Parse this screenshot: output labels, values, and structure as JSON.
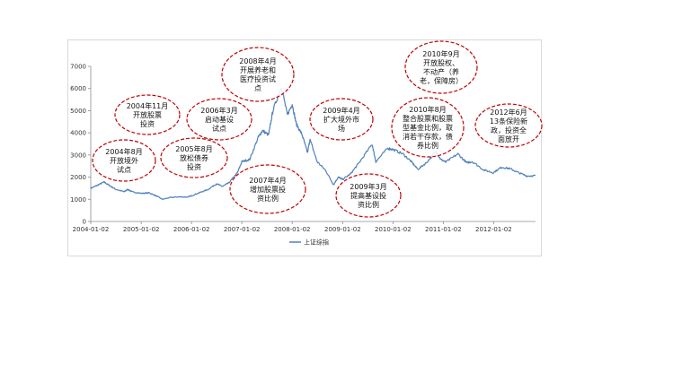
{
  "chart_data": {
    "type": "line",
    "title": "",
    "xlabel": "",
    "ylabel": "",
    "ylim": [
      0,
      7000
    ],
    "y_ticks": [
      0,
      1000,
      2000,
      3000,
      4000,
      5000,
      6000,
      7000
    ],
    "x_ticks": [
      "2004-01-02",
      "2005-01-02",
      "2006-01-02",
      "2007-01-02",
      "2008-01-02",
      "2009-01-02",
      "2010-01-02",
      "2011-01-02",
      "2012-01-02"
    ],
    "grid": false,
    "legend_position": "bottom",
    "series": [
      {
        "name": "上证综指",
        "color": "#4f81bd",
        "points": [
          [
            "2004-01-02",
            1500
          ],
          [
            "2004-02-15",
            1620
          ],
          [
            "2004-04-07",
            1780
          ],
          [
            "2004-05-15",
            1630
          ],
          [
            "2004-07-01",
            1450
          ],
          [
            "2004-09-01",
            1340
          ],
          [
            "2004-09-25",
            1450
          ],
          [
            "2004-11-01",
            1330
          ],
          [
            "2005-01-02",
            1270
          ],
          [
            "2005-03-01",
            1290
          ],
          [
            "2005-04-15",
            1170
          ],
          [
            "2005-06-06",
            1000
          ],
          [
            "2005-08-01",
            1080
          ],
          [
            "2005-10-01",
            1110
          ],
          [
            "2005-12-01",
            1100
          ],
          [
            "2006-01-02",
            1160
          ],
          [
            "2006-03-01",
            1300
          ],
          [
            "2006-05-01",
            1440
          ],
          [
            "2006-07-01",
            1700
          ],
          [
            "2006-08-15",
            1580
          ],
          [
            "2006-10-01",
            1750
          ],
          [
            "2006-12-01",
            2200
          ],
          [
            "2007-01-02",
            2700
          ],
          [
            "2007-02-28",
            2800
          ],
          [
            "2007-05-01",
            3800
          ],
          [
            "2007-06-01",
            4100
          ],
          [
            "2007-07-15",
            3900
          ],
          [
            "2007-08-15",
            5000
          ],
          [
            "2007-10-16",
            6100
          ],
          [
            "2007-11-28",
            4800
          ],
          [
            "2008-01-02",
            5300
          ],
          [
            "2008-02-01",
            4400
          ],
          [
            "2008-03-15",
            3900
          ],
          [
            "2008-04-22",
            3100
          ],
          [
            "2008-05-10",
            3700
          ],
          [
            "2008-07-01",
            2700
          ],
          [
            "2008-09-01",
            2300
          ],
          [
            "2008-10-28",
            1660
          ],
          [
            "2008-12-01",
            2000
          ],
          [
            "2009-01-02",
            1900
          ],
          [
            "2009-03-01",
            2150
          ],
          [
            "2009-05-01",
            2650
          ],
          [
            "2009-08-04",
            3480
          ],
          [
            "2009-08-31",
            2700
          ],
          [
            "2009-11-24",
            3300
          ],
          [
            "2010-01-02",
            3250
          ],
          [
            "2010-03-15",
            3050
          ],
          [
            "2010-05-15",
            2700
          ],
          [
            "2010-07-02",
            2350
          ],
          [
            "2010-09-01",
            2650
          ],
          [
            "2010-11-10",
            3150
          ],
          [
            "2010-12-15",
            2800
          ],
          [
            "2011-01-20",
            2680
          ],
          [
            "2011-04-18",
            3050
          ],
          [
            "2011-06-20",
            2650
          ],
          [
            "2011-08-01",
            2700
          ],
          [
            "2011-10-21",
            2330
          ],
          [
            "2011-12-29",
            2200
          ],
          [
            "2012-03-01",
            2450
          ],
          [
            "2012-05-01",
            2380
          ],
          [
            "2012-07-01",
            2200
          ],
          [
            "2012-09-01",
            2050
          ],
          [
            "2012-10-31",
            2070
          ]
        ]
      }
    ],
    "annotations": [
      {
        "lines": [
          "2004年8月",
          "开放境外",
          "试点"
        ]
      },
      {
        "lines": [
          "2004年11月",
          "开放股票",
          "投资"
        ]
      },
      {
        "lines": [
          "2005年8月",
          "放松债券",
          "投资"
        ]
      },
      {
        "lines": [
          "2006年3月",
          "启动基设",
          "试点"
        ]
      },
      {
        "lines": [
          "2007年4月",
          "增加股票投",
          "资比例"
        ]
      },
      {
        "lines": [
          "2008年4月",
          "开展养老和",
          "医疗投资试",
          "点"
        ]
      },
      {
        "lines": [
          "2009年3月",
          "提高基设投",
          "资比例"
        ]
      },
      {
        "lines": [
          "2009年4月",
          "扩大境外市",
          "场"
        ]
      },
      {
        "lines": [
          "2010年8月",
          "整合股票和股票",
          "型基金比例，取",
          "消若干存款，债",
          "券比例"
        ]
      },
      {
        "lines": [
          "2010年9月",
          "开放股权、",
          "不动产（养",
          "老，保障房）"
        ]
      },
      {
        "lines": [
          "2012年6月",
          "13条保险新",
          "政，投资全",
          "面放开"
        ]
      }
    ]
  }
}
